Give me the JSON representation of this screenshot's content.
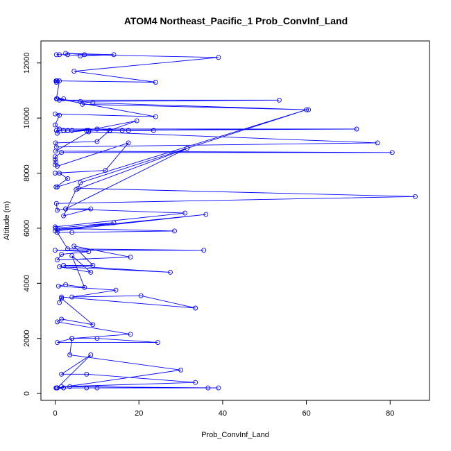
{
  "chart_data": {
    "type": "line",
    "title": "ATOM4 Northeast_Pacific_1 Prob_ConvInf_Land",
    "xlabel": "Prob_ConvInf_Land",
    "ylabel": "Altitude (m)",
    "xlim": [
      -3.4,
      89.4
    ],
    "ylim": [
      -250,
      12800
    ],
    "xticks": [
      0,
      20,
      40,
      60,
      80
    ],
    "yticks": [
      0,
      2000,
      4000,
      6000,
      8000,
      10000,
      12000
    ],
    "grid": false,
    "legend": "none",
    "color": "#0000ff",
    "style": "lines with open circle markers",
    "series": [
      {
        "points": [
          [
            0.3,
            12300
          ],
          [
            1,
            12300
          ],
          [
            3,
            12300
          ],
          [
            6,
            12250
          ],
          [
            14,
            12300
          ],
          [
            2.5,
            12350
          ],
          [
            7,
            12300
          ],
          [
            39,
            12200
          ],
          [
            4.5,
            11700
          ],
          [
            24,
            11300
          ],
          [
            0.3,
            11350
          ],
          [
            0.5,
            11350
          ],
          [
            0.3,
            11300
          ],
          [
            0.2,
            11350
          ],
          [
            1,
            11350
          ],
          [
            0.3,
            10700
          ],
          [
            0.5,
            10700
          ],
          [
            2,
            10700
          ],
          [
            1,
            10650
          ],
          [
            53.5,
            10650
          ],
          [
            6,
            10600
          ],
          [
            6.5,
            10500
          ],
          [
            60.5,
            10300
          ],
          [
            9,
            10550
          ],
          [
            0.5,
            10700
          ],
          [
            24,
            10050
          ],
          [
            0,
            10150
          ],
          [
            1,
            10100
          ],
          [
            0,
            9750
          ],
          [
            1,
            9600
          ],
          [
            72,
            9600
          ],
          [
            3,
            9550
          ],
          [
            16,
            9550
          ],
          [
            10,
            9600
          ],
          [
            4,
            9550
          ],
          [
            23.5,
            9550
          ],
          [
            8,
            9550
          ],
          [
            2,
            9550
          ],
          [
            17.5,
            9550
          ],
          [
            0.3,
            9550
          ],
          [
            0.5,
            9450
          ],
          [
            7.5,
            9550
          ],
          [
            19.5,
            9900
          ],
          [
            13,
            9550
          ],
          [
            10,
            9150
          ],
          [
            0.1,
            9100
          ],
          [
            0.3,
            8950
          ],
          [
            77,
            9100
          ],
          [
            8,
            9500
          ],
          [
            0.1,
            8800
          ],
          [
            80.5,
            8750
          ],
          [
            1.5,
            8750
          ],
          [
            0,
            8600
          ],
          [
            0,
            8500
          ],
          [
            0.2,
            8400
          ],
          [
            0,
            8300
          ],
          [
            0.5,
            8250
          ],
          [
            17.5,
            9100
          ],
          [
            12,
            8100
          ],
          [
            0,
            8000
          ],
          [
            1,
            8000
          ],
          [
            3,
            7800
          ],
          [
            0.2,
            7500
          ],
          [
            0.5,
            7500
          ],
          [
            60,
            10300
          ],
          [
            6,
            7650
          ],
          [
            5.5,
            7450
          ],
          [
            86,
            7150
          ],
          [
            0.3,
            6900
          ],
          [
            0.5,
            6650
          ],
          [
            2.5,
            6700
          ],
          [
            31.5,
            8900
          ],
          [
            5,
            7400
          ],
          [
            2,
            6450
          ],
          [
            8.5,
            6700
          ],
          [
            2.5,
            6700
          ],
          [
            31,
            6550
          ],
          [
            0,
            6050
          ],
          [
            0.5,
            5950
          ],
          [
            36,
            6500
          ],
          [
            0,
            5900
          ],
          [
            14,
            6200
          ],
          [
            0.1,
            6000
          ],
          [
            28.5,
            5900
          ],
          [
            4,
            5850
          ],
          [
            0.5,
            5850
          ],
          [
            3,
            5250
          ],
          [
            35.5,
            5200
          ],
          [
            0,
            5200
          ],
          [
            8,
            5150
          ],
          [
            1.5,
            5050
          ],
          [
            0.5,
            4850
          ],
          [
            18,
            4950
          ],
          [
            4.5,
            5350
          ],
          [
            9,
            4650
          ],
          [
            2,
            4650
          ],
          [
            27.5,
            4400
          ],
          [
            1,
            4600
          ],
          [
            8.5,
            4400
          ],
          [
            4,
            5000
          ],
          [
            7,
            3850
          ],
          [
            2.5,
            3950
          ],
          [
            0.8,
            3900
          ],
          [
            14.5,
            3750
          ],
          [
            4,
            3500
          ],
          [
            20.5,
            3550
          ],
          [
            33.5,
            3100
          ],
          [
            1.5,
            3500
          ],
          [
            1,
            3300
          ],
          [
            1.5,
            3450
          ],
          [
            9,
            2500
          ],
          [
            1.5,
            2700
          ],
          [
            0.5,
            2600
          ],
          [
            18,
            2150
          ],
          [
            4,
            2000
          ],
          [
            0.5,
            1850
          ],
          [
            24.5,
            1850
          ],
          [
            10,
            2000
          ],
          [
            4,
            2000
          ],
          [
            3.5,
            1400
          ],
          [
            30,
            850
          ],
          [
            0.5,
            200
          ],
          [
            8.5,
            1400
          ],
          [
            1.5,
            700
          ],
          [
            7.5,
            700
          ],
          [
            33.5,
            400
          ],
          [
            1.5,
            250
          ],
          [
            36.5,
            200
          ],
          [
            3.5,
            250
          ],
          [
            39,
            200
          ],
          [
            0.2,
            200
          ],
          [
            10,
            200
          ],
          [
            2,
            200
          ],
          [
            0.5,
            200
          ],
          [
            0.3,
            200
          ],
          [
            7.5,
            200
          ]
        ]
      }
    ]
  }
}
